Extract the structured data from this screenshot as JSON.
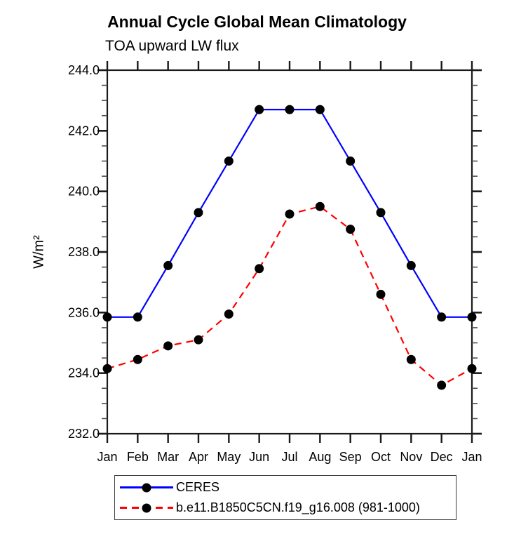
{
  "window": {
    "background": "#ffffff"
  },
  "chart_data": {
    "type": "line",
    "title": "Annual Cycle Global Mean Climatology",
    "subtitle": "TOA upward LW flux",
    "ylabel": "W/m²",
    "xlabel": "",
    "categories": [
      "Jan",
      "Feb",
      "Mar",
      "Apr",
      "May",
      "Jun",
      "Jul",
      "Aug",
      "Sep",
      "Oct",
      "Nov",
      "Dec",
      "Jan"
    ],
    "ylim": [
      232.0,
      244.0
    ],
    "y_major_step": 2.0,
    "y_minor_step": 0.5,
    "y_tick_labels": [
      "232.0",
      "234.0",
      "236.0",
      "238.0",
      "240.0",
      "242.0",
      "244.0"
    ],
    "grid": false,
    "legend_position": "bottom",
    "axis_color": "#1a1a1a",
    "minor_tick_color": "#4d4d4d",
    "text_color": "#000000",
    "marker_color": "#000000",
    "series": [
      {
        "name": "CERES",
        "color": "#0000ff",
        "line_style": "solid",
        "marker": "circle",
        "values": [
          235.85,
          235.85,
          237.55,
          239.3,
          241.0,
          242.7,
          242.7,
          242.7,
          241.0,
          239.3,
          237.55,
          235.85,
          235.85
        ]
      },
      {
        "name": "b.e11.B1850C5CN.f19_g16.008 (981-1000)",
        "color": "#ff0000",
        "line_style": "dashed",
        "marker": "circle",
        "values": [
          234.15,
          234.45,
          234.9,
          235.1,
          235.95,
          237.45,
          239.25,
          239.5,
          238.75,
          236.6,
          234.45,
          233.6,
          234.15
        ]
      }
    ]
  }
}
